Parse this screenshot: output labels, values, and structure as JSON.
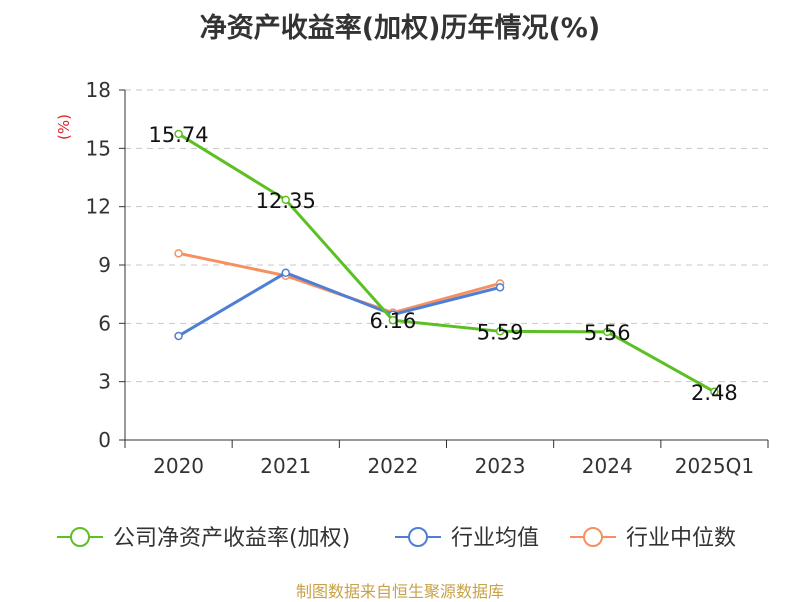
{
  "chart_data": {
    "type": "line",
    "title": "净资产收益率(加权)历年情况(%)",
    "ylabel": "(%)",
    "xlabel": "",
    "categories": [
      "2020",
      "2021",
      "2022",
      "2023",
      "2024",
      "2025Q1"
    ],
    "ylim": [
      0,
      18
    ],
    "yticks": [
      0,
      3,
      6,
      9,
      12,
      15,
      18
    ],
    "grid": true,
    "legend_position": "bottom",
    "series": [
      {
        "name": "公司净资产收益率(加权)",
        "color": "#5cc025",
        "values": [
          15.74,
          12.35,
          6.16,
          5.59,
          5.56,
          2.48
        ],
        "labels": [
          "15.74",
          "12.35",
          "6.16",
          "5.59",
          "5.56",
          "2.48"
        ]
      },
      {
        "name": "行业均值",
        "color": "#4f7fd4",
        "values": [
          5.35,
          8.6,
          6.45,
          7.85,
          null,
          null
        ]
      },
      {
        "name": "行业中位数",
        "color": "#f79060",
        "values": [
          9.6,
          8.45,
          6.55,
          8.05,
          null,
          null
        ]
      }
    ]
  },
  "source": "制图数据来自恒生聚源数据库"
}
